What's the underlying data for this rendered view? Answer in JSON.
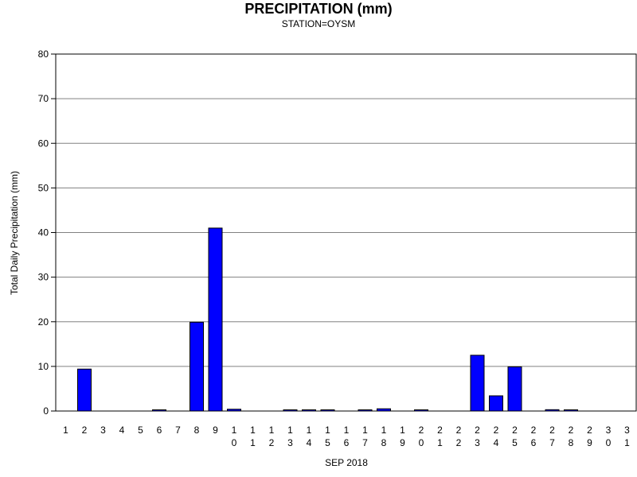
{
  "chart_data": {
    "type": "bar",
    "title": "PRECIPITATION (mm)",
    "subtitle": "STATION=OYSM",
    "xlabel": "SEP 2018",
    "ylabel": "Total Daily Precipitation (mm)",
    "ylim": [
      0,
      80
    ],
    "yticks": [
      0,
      10,
      20,
      30,
      40,
      50,
      60,
      70,
      80
    ],
    "grid": true,
    "colors": {
      "bar": "#0000ff",
      "outline": "#000000",
      "grid": "#808080"
    },
    "categories": [
      "1",
      "2",
      "3",
      "4",
      "5",
      "6",
      "7",
      "8",
      "9",
      "10",
      "11",
      "12",
      "13",
      "14",
      "15",
      "16",
      "17",
      "18",
      "19",
      "20",
      "21",
      "22",
      "23",
      "24",
      "25",
      "26",
      "27",
      "28",
      "29",
      "30",
      "31"
    ],
    "values": [
      0,
      9.4,
      0,
      0,
      0,
      0.1,
      0,
      19.9,
      41.0,
      0.4,
      0,
      0,
      0.1,
      0.1,
      0.1,
      0,
      0.1,
      0.5,
      0,
      0.1,
      0,
      0,
      12.5,
      3.4,
      9.9,
      0,
      0.3,
      0.1,
      0,
      0,
      0
    ]
  }
}
